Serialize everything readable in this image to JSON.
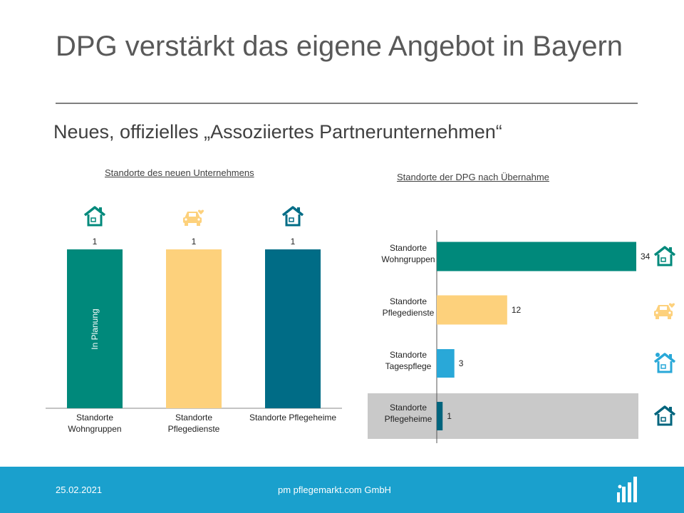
{
  "slide": {
    "title": "DPG verstärkt das eigene Angebot in Bayern",
    "subtitle": "Neues, offizielles „Assoziiertes Partnerunternehmen“"
  },
  "footer": {
    "date": "25.02.2021",
    "company": "pm pflegemarkt.com GmbH"
  },
  "colors": {
    "teal": "#00897b",
    "yellow": "#fdd17c",
    "petrol": "#006c86",
    "cyan": "#29a8d8",
    "dark_petrol": "#00647d",
    "highlight_band": "#c9c9c9",
    "footer": "#1aa0cd"
  },
  "chart_data": [
    {
      "type": "bar",
      "title": "Standorte des neuen Unternehmens",
      "categories": [
        "Standorte Wohngruppen",
        "Standorte Pflegedienste",
        "Standorte Pflegeheime"
      ],
      "values": [
        1,
        1,
        1
      ],
      "category_lines": [
        [
          "Standorte",
          "Wohngruppen"
        ],
        [
          "Standorte",
          "Pflegedienste"
        ],
        [
          "Standorte Pflegeheime"
        ]
      ],
      "data_labels": [
        "1",
        "1",
        "1"
      ],
      "bar_colors": [
        "#00897b",
        "#fdd17c",
        "#006c86"
      ],
      "icons": [
        "house-icon",
        "care-car-icon",
        "house-icon"
      ],
      "annotations": [
        {
          "category": "Standorte Wohngruppen",
          "text": "In Planung"
        }
      ],
      "ylim": [
        0,
        1
      ],
      "grid": false,
      "legend": "none"
    },
    {
      "type": "bar",
      "orientation": "horizontal",
      "title": "Standorte der DPG nach Übernahme",
      "categories": [
        "Standorte Wohngruppen",
        "Standorte Pflegedienste",
        "Standorte Tagespflege",
        "Standorte Pflegeheime"
      ],
      "values": [
        34,
        12,
        3,
        1
      ],
      "category_lines": [
        [
          "Standorte",
          "Wohngruppen"
        ],
        [
          "Standorte",
          "Pflegedienste"
        ],
        [
          "Standorte",
          "Tagespflege"
        ],
        [
          "Standorte",
          "Pflegeheime"
        ]
      ],
      "data_labels": [
        "34",
        "12",
        "3",
        "1"
      ],
      "bar_colors": [
        "#00897b",
        "#fdd17c",
        "#29a8d8",
        "#00647d"
      ],
      "icons": [
        "house-icon",
        "care-car-icon",
        "sun-house-icon",
        "house-icon"
      ],
      "highlighted_category": "Standorte Pflegeheime",
      "xlim": [
        0,
        34
      ],
      "grid": false,
      "legend": "none"
    }
  ]
}
